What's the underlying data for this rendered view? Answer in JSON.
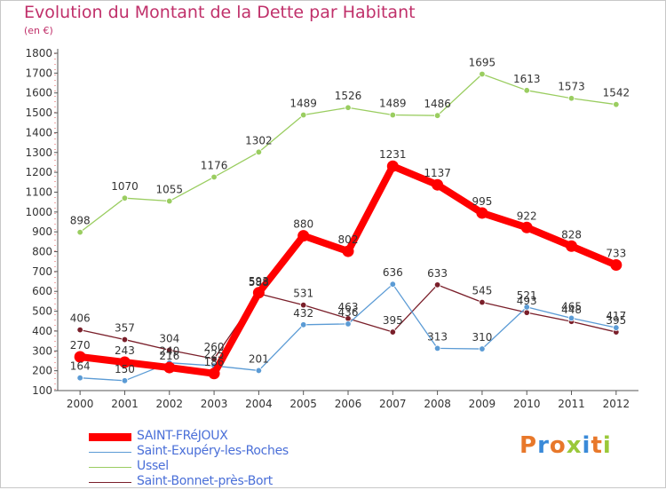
{
  "header": {
    "title": "Evolution du Montant de la Dette par Habitant",
    "subtitle": "(en €)"
  },
  "logo": {
    "text": "Proxiti",
    "colors": [
      "#e8782a",
      "#3a8ad8",
      "#e8782a",
      "#9ac83a",
      "#3a8ad8",
      "#e8782a",
      "#9ac83a"
    ]
  },
  "chart_data": {
    "type": "line",
    "title": "Evolution du Montant de la Dette par Habitant",
    "subtitle": "(en €)",
    "xlabel": "",
    "ylabel": "",
    "x": [
      "2000",
      "2001",
      "2002",
      "2003",
      "2004",
      "2005",
      "2006",
      "2007",
      "2008",
      "2009",
      "2010",
      "2011",
      "2012"
    ],
    "ylim": [
      100,
      1800
    ],
    "yticks": [
      100,
      200,
      300,
      400,
      500,
      600,
      700,
      800,
      900,
      1000,
      1100,
      1200,
      1300,
      1400,
      1500,
      1600,
      1700,
      1800
    ],
    "grid": false,
    "legend_position": "bottom-left",
    "series": [
      {
        "name": "Saint-Bonnet-près-Bort",
        "color": "#7a1f2a",
        "values": [
          406,
          357,
          304,
          260,
          588,
          531,
          463,
          395,
          633,
          545,
          493,
          448,
          395
        ]
      },
      {
        "name": "Saint-Exupéry-les-Roches",
        "color": "#5b9bd5",
        "values": [
          164,
          150,
          240,
          225,
          201,
          432,
          436,
          636,
          313,
          310,
          521,
          465,
          417
        ]
      },
      {
        "name": "Ussel",
        "color": "#9acd60",
        "values": [
          898,
          1070,
          1055,
          1176,
          1302,
          1489,
          1526,
          1489,
          1486,
          1695,
          1613,
          1573,
          1542
        ]
      },
      {
        "name": "SAINT-FRéJOUX",
        "color": "#ff0000",
        "values": [
          270,
          243,
          216,
          186,
          593,
          880,
          802,
          1231,
          1137,
          995,
          922,
          828,
          733
        ]
      }
    ],
    "legend": [
      "SAINT-FRéJOUX",
      "Saint-Exupéry-les-Roches",
      "Ussel",
      "Saint-Bonnet-près-Bort"
    ]
  }
}
